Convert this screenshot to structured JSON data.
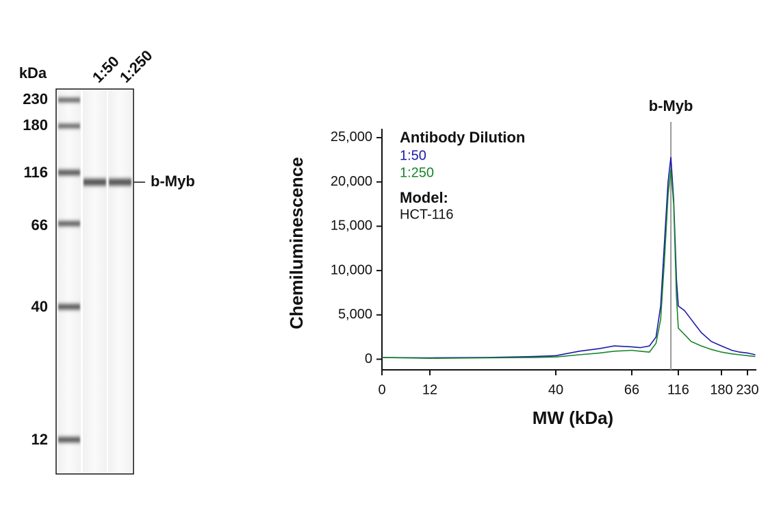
{
  "blot": {
    "unit_label": "kDa",
    "lanes": [
      "1:50",
      "1:250"
    ],
    "markers": [
      "230",
      "180",
      "116",
      "66",
      "40",
      "12"
    ],
    "band_label": "b-Myb"
  },
  "chart_data": {
    "type": "line",
    "y_label": "Chemiluminescence",
    "x_label": "MW (kDa)",
    "legend_title": "Antibody Dilution",
    "annotations": [
      {
        "text": "Model:"
      },
      {
        "text": "HCT-116"
      }
    ],
    "peak": {
      "text": "b-Myb",
      "x": 108
    },
    "x": [
      0,
      12,
      25,
      35,
      40,
      48,
      55,
      60,
      66,
      75,
      85,
      92,
      97,
      101,
      105,
      108,
      111,
      114,
      116,
      125,
      135,
      150,
      165,
      180,
      200,
      215,
      230,
      245
    ],
    "series": [
      {
        "name": "1:50",
        "color": "#1a1aa8",
        "values": [
          200,
          150,
          200,
          300,
          400,
          900,
          1200,
          1500,
          1400,
          1300,
          1500,
          2500,
          6000,
          13000,
          20000,
          22800,
          18000,
          9000,
          6000,
          5500,
          4500,
          3000,
          2000,
          1500,
          1000,
          800,
          700,
          500
        ]
      },
      {
        "name": "1:250",
        "color": "#17852a",
        "values": [
          200,
          100,
          150,
          200,
          250,
          500,
          700,
          900,
          1000,
          900,
          800,
          1800,
          4500,
          11000,
          18500,
          21400,
          17500,
          7000,
          3500,
          2800,
          2000,
          1500,
          1100,
          800,
          600,
          500,
          400,
          300
        ]
      }
    ],
    "xlim": [
      0,
      247
    ],
    "xticks": [
      0,
      12,
      40,
      66,
      116,
      180,
      230
    ],
    "ylim": [
      -1200,
      26000
    ],
    "yticks": [
      0,
      {
        "value": 5000,
        "label": "5,000"
      },
      {
        "value": 10000,
        "label": "10,000"
      },
      {
        "value": 15000,
        "label": "15,000"
      },
      {
        "value": 20000,
        "label": "20,000"
      },
      {
        "value": 25000,
        "label": "25,000"
      }
    ]
  }
}
